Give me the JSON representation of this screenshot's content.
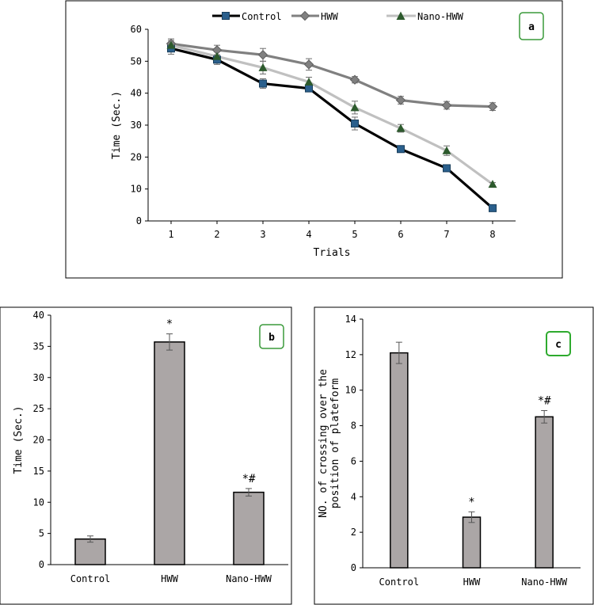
{
  "chart_data": [
    {
      "panel_label": "a",
      "type": "line",
      "x": [
        1,
        2,
        3,
        4,
        5,
        6,
        7,
        8
      ],
      "xlabel": "Trials",
      "ylabel": "Time (Sec.)",
      "ylim": [
        0,
        60
      ],
      "yticks": [
        0,
        10,
        20,
        30,
        40,
        50,
        60
      ],
      "series": [
        {
          "name": "Control",
          "color": "#000000",
          "marker": "square",
          "marker_color": "#2a5f8c",
          "values": [
            54.0,
            50.5,
            43.0,
            41.5,
            30.5,
            22.5,
            16.5,
            4.0
          ],
          "errors": [
            1.8,
            1.5,
            1.5,
            1.0,
            2.0,
            0.8,
            1.0,
            0.5
          ]
        },
        {
          "name": "HWW",
          "color": "#808080",
          "marker": "diamond",
          "marker_color": "#808080",
          "values": [
            55.5,
            53.5,
            52.0,
            49.0,
            44.2,
            37.8,
            36.2,
            35.8
          ],
          "errors": [
            1.5,
            1.5,
            2.0,
            1.8,
            1.0,
            1.2,
            1.2,
            1.2
          ]
        },
        {
          "name": "Nano-HWW",
          "color": "#c0c0c0",
          "marker": "triangle",
          "marker_color": "#2d5a2d",
          "values": [
            55.0,
            51.5,
            48.0,
            43.5,
            35.5,
            29.0,
            22.0,
            11.5
          ],
          "errors": [
            1.5,
            1.5,
            2.0,
            1.5,
            2.0,
            1.2,
            1.5,
            0.5
          ]
        }
      ]
    },
    {
      "panel_label": "b",
      "type": "bar",
      "categories": [
        "Control",
        "HWW",
        "Nano-HWW"
      ],
      "values": [
        4.1,
        35.7,
        11.6
      ],
      "errors": [
        0.5,
        1.3,
        0.6
      ],
      "annotations": [
        "",
        "*",
        "*#"
      ],
      "ylabel": "Time (Sec.)",
      "ylim": [
        0,
        40
      ],
      "yticks": [
        0,
        5,
        10,
        15,
        20,
        25,
        30,
        35,
        40
      ],
      "bar_color": "#aba6a6"
    },
    {
      "panel_label": "c",
      "type": "bar",
      "categories": [
        "Control",
        "HWW",
        "Nano-HWW"
      ],
      "values": [
        12.1,
        2.85,
        8.5
      ],
      "errors": [
        0.6,
        0.3,
        0.35
      ],
      "annotations": [
        "",
        "*",
        "*#"
      ],
      "ylabel": "NO. of crossing over the position of plateform",
      "ylabel_lines": [
        "NO. of crossing over the",
        "position of plateform"
      ],
      "ylim": [
        0,
        14
      ],
      "yticks": [
        0,
        2,
        4,
        6,
        8,
        10,
        12,
        14
      ],
      "bar_color": "#aba6a6"
    }
  ]
}
